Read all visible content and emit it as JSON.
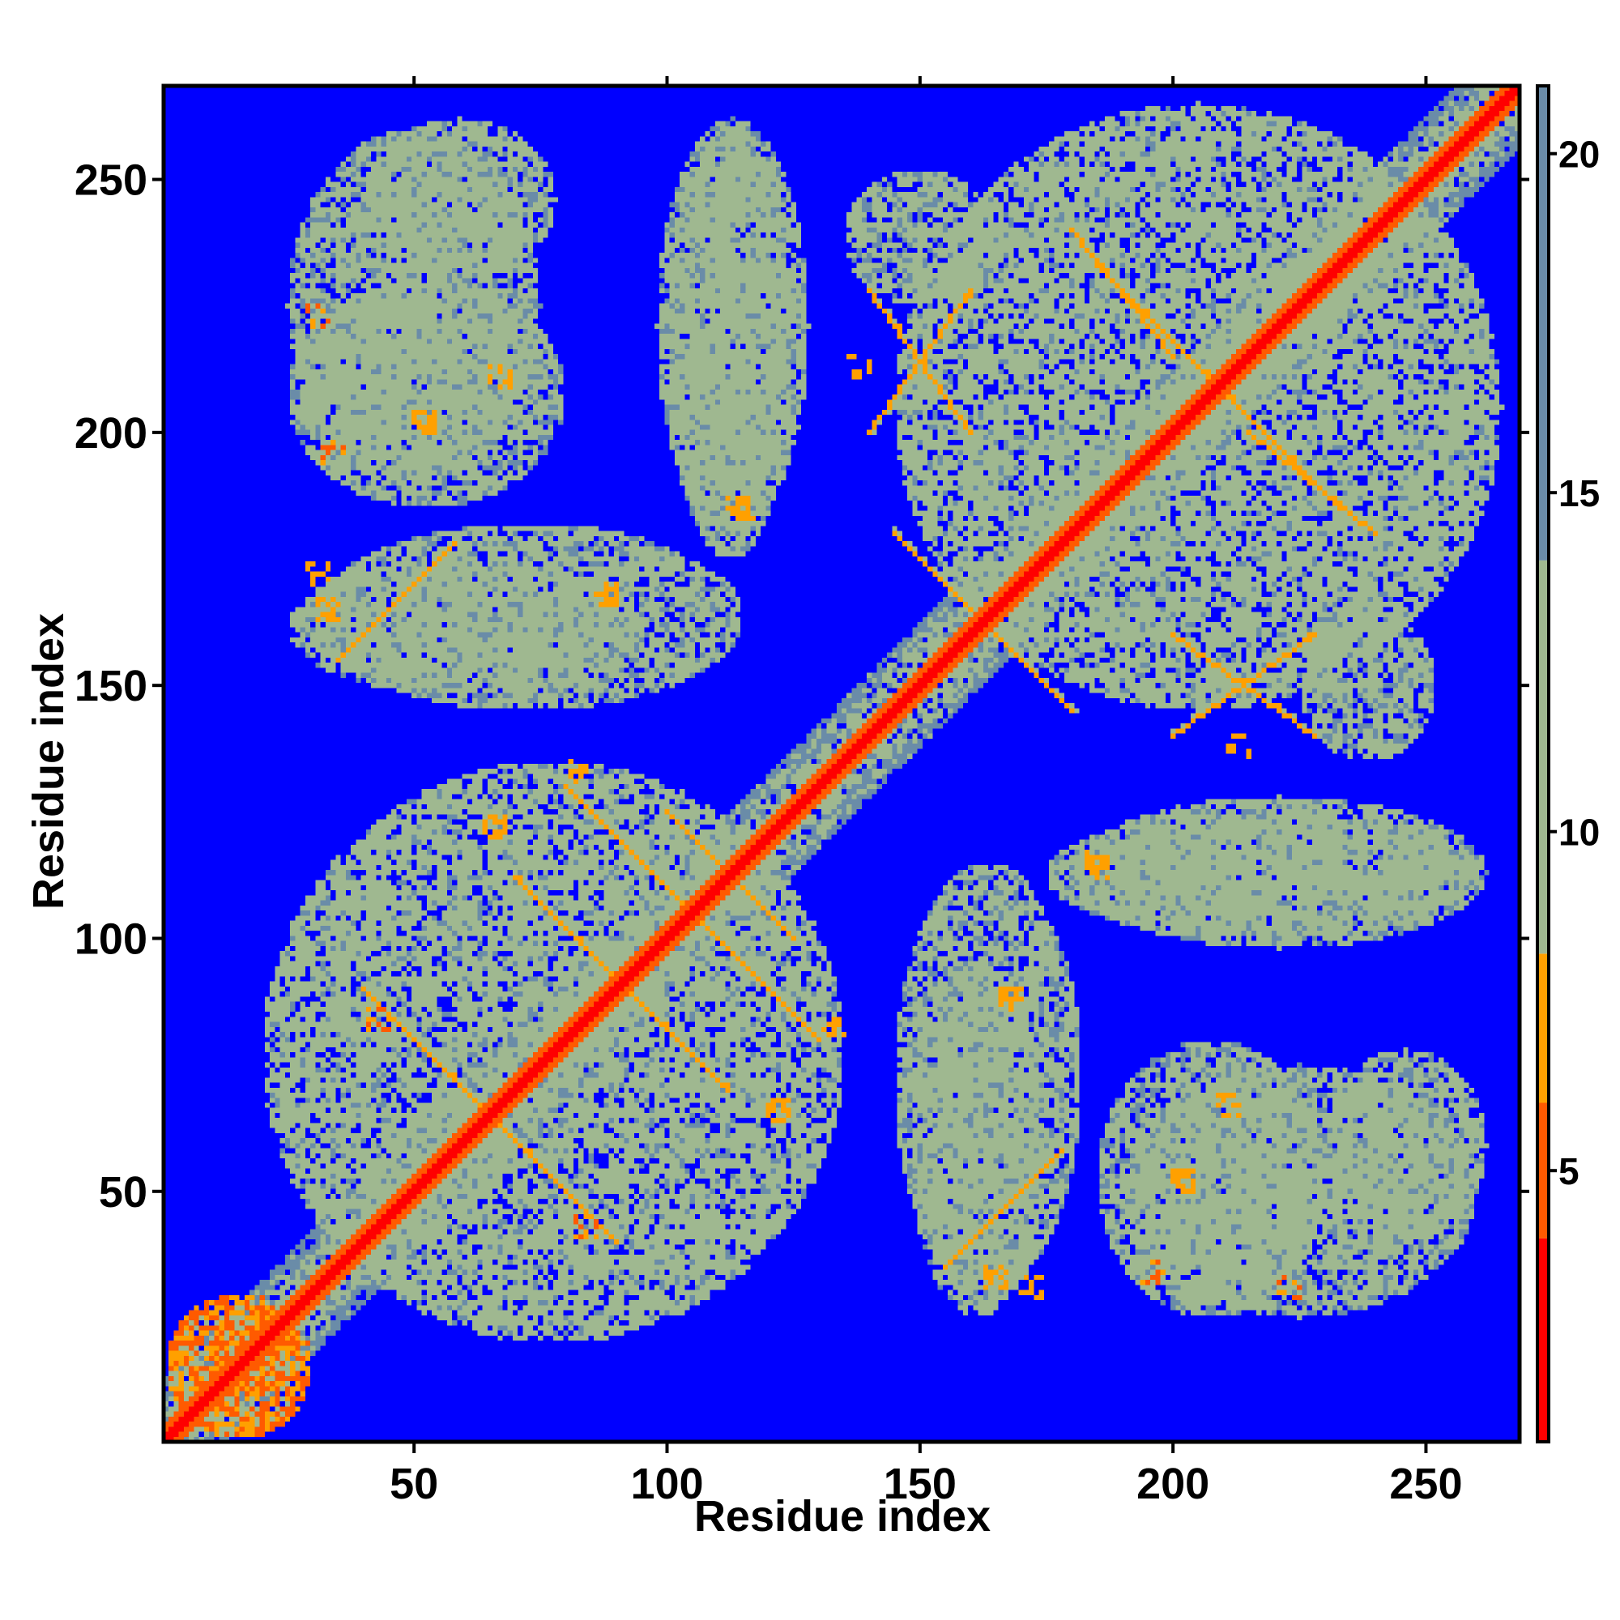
{
  "chart_data": {
    "type": "heatmap",
    "title": "",
    "xlabel": "Residue index",
    "ylabel": "Residue index",
    "residue_count": 268,
    "xlim": [
      1,
      268
    ],
    "ylim": [
      1,
      268
    ],
    "x_ticks": [
      50,
      100,
      150,
      200,
      250
    ],
    "y_ticks": [
      50,
      100,
      150,
      200,
      250
    ],
    "colorbar": {
      "range": [
        1,
        21
      ],
      "ticks": [
        5,
        10,
        15,
        20
      ],
      "bands": [
        {
          "from": 1,
          "to": 4,
          "color": "#ff0000"
        },
        {
          "from": 4,
          "to": 6,
          "color": "#ff5a00"
        },
        {
          "from": 6,
          "to": 8.2,
          "color": "#ffa000"
        },
        {
          "from": 8.2,
          "to": 14,
          "color": "#9fb890"
        },
        {
          "from": 14,
          "to": 21,
          "color": "#6a8ca8"
        }
      ]
    },
    "background": {
      "color": "#0000ff",
      "meaning": "distance > 21"
    },
    "diagonal": {
      "color": "#ff0000",
      "value": 0
    },
    "contact_regions": [
      {
        "x": [
          1,
          30
        ],
        "y": [
          1,
          30
        ],
        "value": 6
      },
      {
        "x": [
          20,
          135
        ],
        "y": [
          20,
          135
        ],
        "value": 11
      },
      {
        "x": [
          145,
          265
        ],
        "y": [
          145,
          265
        ],
        "value": 11
      },
      {
        "x": [
          30,
          115
        ],
        "y": [
          145,
          182
        ],
        "value": 12
      },
      {
        "x": [
          145,
          182
        ],
        "y": [
          30,
          115
        ],
        "value": 12
      },
      {
        "x": [
          25,
          80
        ],
        "y": [
          185,
          230
        ],
        "value": 12
      },
      {
        "x": [
          185,
          230
        ],
        "y": [
          25,
          80
        ],
        "value": 12
      },
      {
        "x": [
          40,
          78
        ],
        "y": [
          230,
          262
        ],
        "value": 12
      },
      {
        "x": [
          230,
          262
        ],
        "y": [
          40,
          78
        ],
        "value": 12
      },
      {
        "x": [
          98,
          128
        ],
        "y": [
          180,
          262
        ],
        "value": 12
      },
      {
        "x": [
          180,
          262
        ],
        "y": [
          98,
          128
        ],
        "value": 12
      },
      {
        "x": [
          135,
          165
        ],
        "y": [
          225,
          252
        ],
        "value": 12
      },
      {
        "x": [
          225,
          252
        ],
        "y": [
          135,
          165
        ],
        "value": 12
      },
      {
        "x": [
          148,
          175
        ],
        "y": [
          25,
          95
        ],
        "value": 12
      },
      {
        "x": [
          25,
          95
        ],
        "y": [
          148,
          175
        ],
        "value": 12
      },
      {
        "x": [
          190,
          260
        ],
        "y": [
          25,
          75
        ],
        "value": 12
      },
      {
        "x": [
          25,
          75
        ],
        "y": [
          190,
          260
        ],
        "value": 12
      },
      {
        "x": [
          175,
          260
        ],
        "y": [
          100,
          125
        ],
        "value": 12
      },
      {
        "x": [
          100,
          125
        ],
        "y": [
          175,
          260
        ],
        "value": 12
      }
    ],
    "hot_spots": [
      {
        "x": 31,
        "y": 172,
        "value": 6
      },
      {
        "x": 88,
        "y": 168,
        "value": 6
      },
      {
        "x": 114,
        "y": 185,
        "value": 6
      },
      {
        "x": 52,
        "y": 202,
        "value": 6
      },
      {
        "x": 34,
        "y": 196,
        "value": 5
      },
      {
        "x": 66,
        "y": 122,
        "value": 6
      },
      {
        "x": 43,
        "y": 84,
        "value": 5
      },
      {
        "x": 82,
        "y": 133,
        "value": 6
      },
      {
        "x": 185,
        "y": 115,
        "value": 6
      },
      {
        "x": 168,
        "y": 88,
        "value": 6
      },
      {
        "x": 202,
        "y": 52,
        "value": 6
      },
      {
        "x": 213,
        "y": 138,
        "value": 6
      },
      {
        "x": 211,
        "y": 67,
        "value": 6
      },
      {
        "x": 223,
        "y": 31,
        "value": 5
      },
      {
        "x": 165,
        "y": 33,
        "value": 6
      }
    ],
    "contact_lines": [
      {
        "from": [
          35,
          155
        ],
        "to": [
          58,
          178
        ],
        "value": 6
      },
      {
        "from": [
          70,
          112
        ],
        "to": [
          112,
          70
        ],
        "value": 6
      },
      {
        "from": [
          80,
          130
        ],
        "to": [
          130,
          80
        ],
        "value": 6
      },
      {
        "from": [
          40,
          90
        ],
        "to": [
          90,
          40
        ],
        "value": 6
      },
      {
        "from": [
          100,
          125
        ],
        "to": [
          125,
          100
        ],
        "value": 6
      },
      {
        "from": [
          150,
          175
        ],
        "to": [
          175,
          150
        ],
        "value": 6
      },
      {
        "from": [
          155,
          170
        ],
        "to": [
          180,
          145
        ],
        "value": 6
      },
      {
        "from": [
          185,
          233
        ],
        "to": [
          233,
          185
        ],
        "value": 6
      },
      {
        "from": [
          200,
          160
        ],
        "to": [
          228,
          140
        ],
        "value": 6
      },
      {
        "from": [
          140,
          200
        ],
        "to": [
          160,
          228
        ],
        "value": 6
      },
      {
        "from": [
          180,
          240
        ],
        "to": [
          200,
          215
        ],
        "value": 6
      },
      {
        "from": [
          215,
          200
        ],
        "to": [
          240,
          180
        ],
        "value": 6
      }
    ]
  }
}
